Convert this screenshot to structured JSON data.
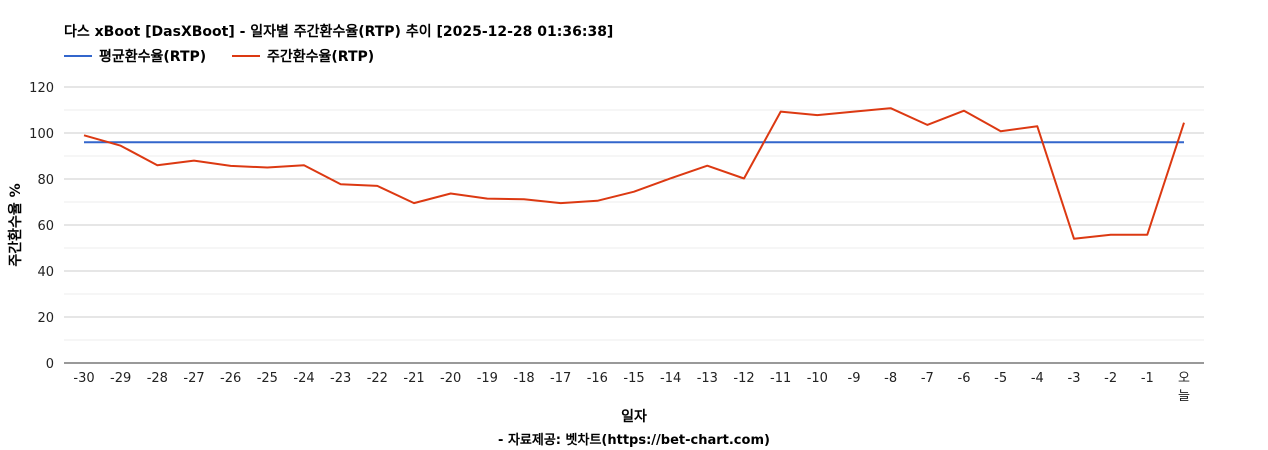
{
  "chart_data": {
    "type": "line",
    "title": "다스 xBoot [DasXBoot] - 일자별 주간환수율(RTP) 추이 [2025-12-28 01:36:38]",
    "xlabel": "일자",
    "ylabel": "주간환수율 %",
    "credit": "- 자료제공: 벳차트(https://bet-chart.com)",
    "categories": [
      "-30",
      "-29",
      "-28",
      "-27",
      "-26",
      "-25",
      "-24",
      "-23",
      "-22",
      "-21",
      "-20",
      "-19",
      "-18",
      "-17",
      "-16",
      "-15",
      "-14",
      "-13",
      "-12",
      "-11",
      "-10",
      "-9",
      "-8",
      "-7",
      "-6",
      "-5",
      "-4",
      "-3",
      "-2",
      "-1",
      "오늘"
    ],
    "ylim": [
      0,
      120
    ],
    "yticks": [
      0,
      20,
      40,
      60,
      80,
      100,
      120
    ],
    "grid": true,
    "legend_position": "top-left",
    "series": [
      {
        "name": "평균환수율(RTP)",
        "color": "#3366cc",
        "values": [
          96,
          96,
          96,
          96,
          96,
          96,
          96,
          96,
          96,
          96,
          96,
          96,
          96,
          96,
          96,
          96,
          96,
          96,
          96,
          96,
          96,
          96,
          96,
          96,
          96,
          96,
          96,
          96,
          96,
          96,
          96
        ]
      },
      {
        "name": "주간환수율(RTP)",
        "color": "#dc3912",
        "values": [
          99,
          94.5,
          86,
          88,
          85.7,
          85,
          86,
          77.7,
          77,
          69.5,
          73.7,
          71.5,
          71.2,
          69.5,
          70.5,
          74.5,
          80.3,
          85.8,
          80.2,
          109.3,
          107.8,
          109.3,
          110.8,
          103.5,
          109.7,
          100.8,
          102.9,
          54,
          55.8,
          55.8,
          104.5
        ]
      }
    ]
  }
}
